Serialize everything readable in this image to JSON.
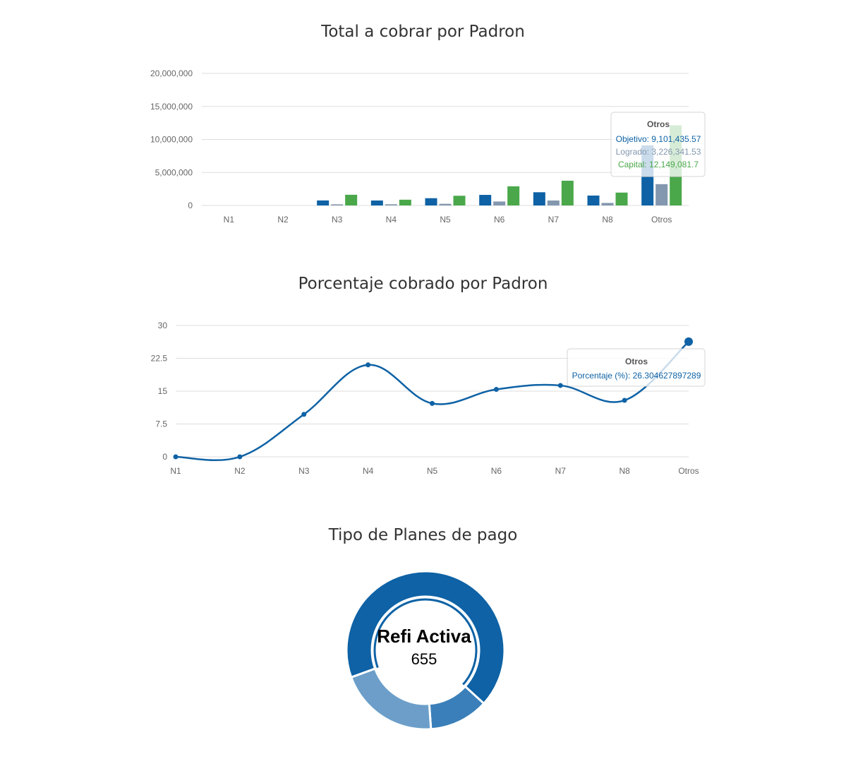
{
  "chart_data": [
    {
      "type": "bar",
      "title": "Total a cobrar por Padron",
      "categories": [
        "N1",
        "N2",
        "N3",
        "N4",
        "N5",
        "N6",
        "N7",
        "N8",
        "Otros"
      ],
      "yticks": [
        "0",
        "5,000,000",
        "10,000,000",
        "15,000,000",
        "20,000,000"
      ],
      "ylim": [
        0,
        20000000
      ],
      "grid": true,
      "series": [
        {
          "name": "Objetivo",
          "color": "#0e62a5",
          "values": [
            0,
            0,
            760000,
            750000,
            1100000,
            1600000,
            2000000,
            1500000,
            9101435.57
          ]
        },
        {
          "name": "Logrado",
          "color": "#8397ae",
          "values": [
            0,
            0,
            170000,
            180000,
            250000,
            600000,
            750000,
            380000,
            3226341.53
          ]
        },
        {
          "name": "Capital",
          "color": "#4aa84a",
          "values": [
            0,
            0,
            1620000,
            870000,
            1470000,
            2900000,
            3750000,
            1950000,
            12149081.7
          ]
        }
      ],
      "tooltip": {
        "title": "Otros",
        "lines": [
          {
            "label": "Objetivo: 9,101,435.57",
            "color": "#0e62a5"
          },
          {
            "label": "Logrado: 3,226,341.53",
            "color": "#8397ae"
          },
          {
            "label": "Capital: 12,149,081.7",
            "color": "#4aa84a"
          }
        ]
      }
    },
    {
      "type": "line",
      "title": "Porcentaje cobrado por Padron",
      "categories": [
        "N1",
        "N2",
        "N3",
        "N4",
        "N5",
        "N6",
        "N7",
        "N8",
        "Otros"
      ],
      "yticks": [
        "0",
        "7.5",
        "15",
        "22.5",
        "30"
      ],
      "ylim": [
        0,
        30
      ],
      "grid": true,
      "series": [
        {
          "name": "Porcentaje (%)",
          "color": "#0e62a5",
          "values": [
            0,
            0,
            9.7,
            21,
            12.2,
            15.4,
            16.3,
            12.9,
            26.304627897289
          ]
        }
      ],
      "tooltip": {
        "title": "Otros",
        "lines": [
          {
            "label": "Porcentaje (%): 26.304627897289",
            "color": "#0e62a5"
          }
        ]
      }
    },
    {
      "type": "pie",
      "title": "Tipo de Planes de pago",
      "center_label": "Refi Activa",
      "center_value": "655",
      "values": [
        655,
        118,
        200
      ],
      "colors": [
        "#0e62a5",
        "#3a7fb9",
        "#6c9ec9"
      ]
    }
  ]
}
